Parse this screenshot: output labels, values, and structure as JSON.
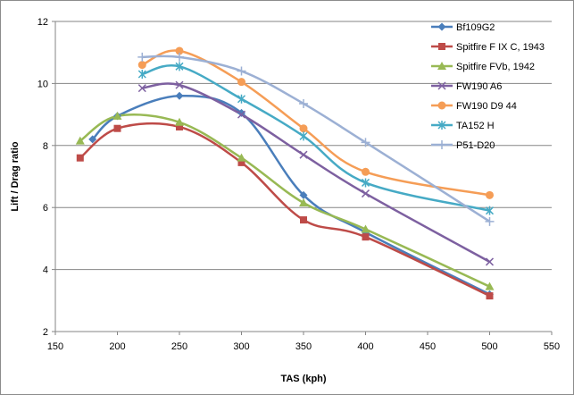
{
  "chart_data": {
    "type": "line",
    "xlabel": "TAS (kph)",
    "ylabel": "Lift / Drag ratio",
    "xlim": [
      150,
      550
    ],
    "ylim": [
      2,
      12
    ],
    "xticks": [
      150,
      200,
      250,
      300,
      350,
      400,
      450,
      500,
      550
    ],
    "yticks": [
      2,
      4,
      6,
      8,
      10,
      12
    ],
    "grid": "horizontal",
    "legend_position": "right",
    "series": [
      {
        "name": "Bf109G2",
        "color": "#4a7ebb",
        "marker": "diamond",
        "x": [
          180,
          200,
          250,
          300,
          350,
          400,
          500
        ],
        "y": [
          8.2,
          8.95,
          9.6,
          9.05,
          6.4,
          5.2,
          3.2
        ]
      },
      {
        "name": "Spitfire F IX C, 1943",
        "color": "#be4b48",
        "marker": "square",
        "x": [
          170,
          200,
          250,
          300,
          350,
          400,
          500
        ],
        "y": [
          7.6,
          8.55,
          8.6,
          7.45,
          5.6,
          5.05,
          3.15
        ]
      },
      {
        "name": "Spitfire FVb, 1942",
        "color": "#98b954",
        "marker": "triangle",
        "x": [
          170,
          200,
          250,
          300,
          350,
          400,
          500
        ],
        "y": [
          8.15,
          8.95,
          8.75,
          7.6,
          6.15,
          5.3,
          3.45
        ]
      },
      {
        "name": "FW190 A6",
        "color": "#7d60a0",
        "marker": "x",
        "x": [
          220,
          250,
          300,
          350,
          400,
          500
        ],
        "y": [
          9.85,
          9.95,
          9.0,
          7.7,
          6.45,
          4.25
        ]
      },
      {
        "name": "FW190 D9 44",
        "color": "#f59d56",
        "marker": "circle",
        "x": [
          220,
          250,
          300,
          350,
          400,
          500
        ],
        "y": [
          10.6,
          11.05,
          10.05,
          8.55,
          7.15,
          6.4
        ]
      },
      {
        "name": "TA152 H",
        "color": "#46aac5",
        "marker": "asterisk",
        "x": [
          220,
          250,
          300,
          350,
          400,
          500
        ],
        "y": [
          10.3,
          10.55,
          9.5,
          8.3,
          6.8,
          5.9
        ]
      },
      {
        "name": "P51-D20",
        "color": "#9cb0d4",
        "marker": "plus",
        "x": [
          220,
          250,
          300,
          350,
          400,
          500
        ],
        "y": [
          10.85,
          10.85,
          10.4,
          9.35,
          8.1,
          5.55
        ]
      }
    ]
  }
}
